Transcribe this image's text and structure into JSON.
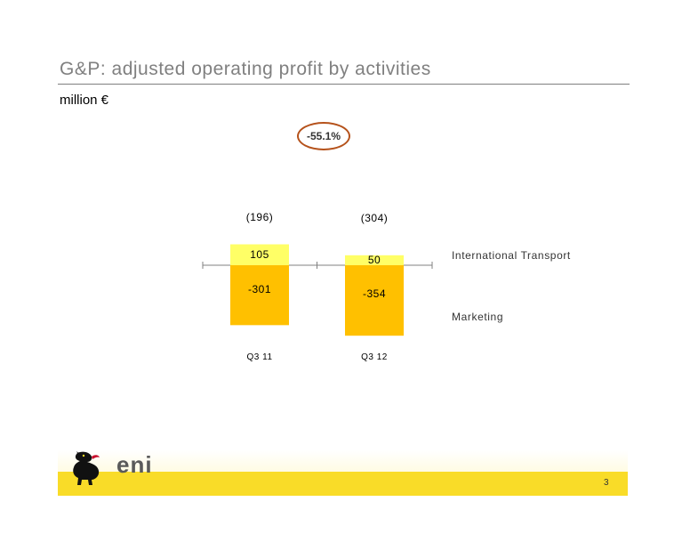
{
  "slide": {
    "title": "G&P: adjusted operating profit by activities",
    "subtitle": "million €",
    "change_badge": "-55.1%",
    "page_number": "3",
    "logo_text": "eni"
  },
  "chart_data": {
    "type": "bar",
    "stacked": true,
    "categories": [
      "Q3 11",
      "Q3 12"
    ],
    "totals": [
      "(196)",
      "(304)"
    ],
    "series": [
      {
        "name": "International Transport",
        "values": [
          105,
          50
        ],
        "color": "#ffff66"
      },
      {
        "name": "Marketing",
        "values": [
          -301,
          -354
        ],
        "color": "#ffc000"
      }
    ],
    "value_labels": [
      [
        "105",
        "-301"
      ],
      [
        "50",
        "-354"
      ]
    ],
    "legend": [
      "International Transport",
      "Marketing"
    ],
    "legend_position": "right",
    "grid": false
  }
}
